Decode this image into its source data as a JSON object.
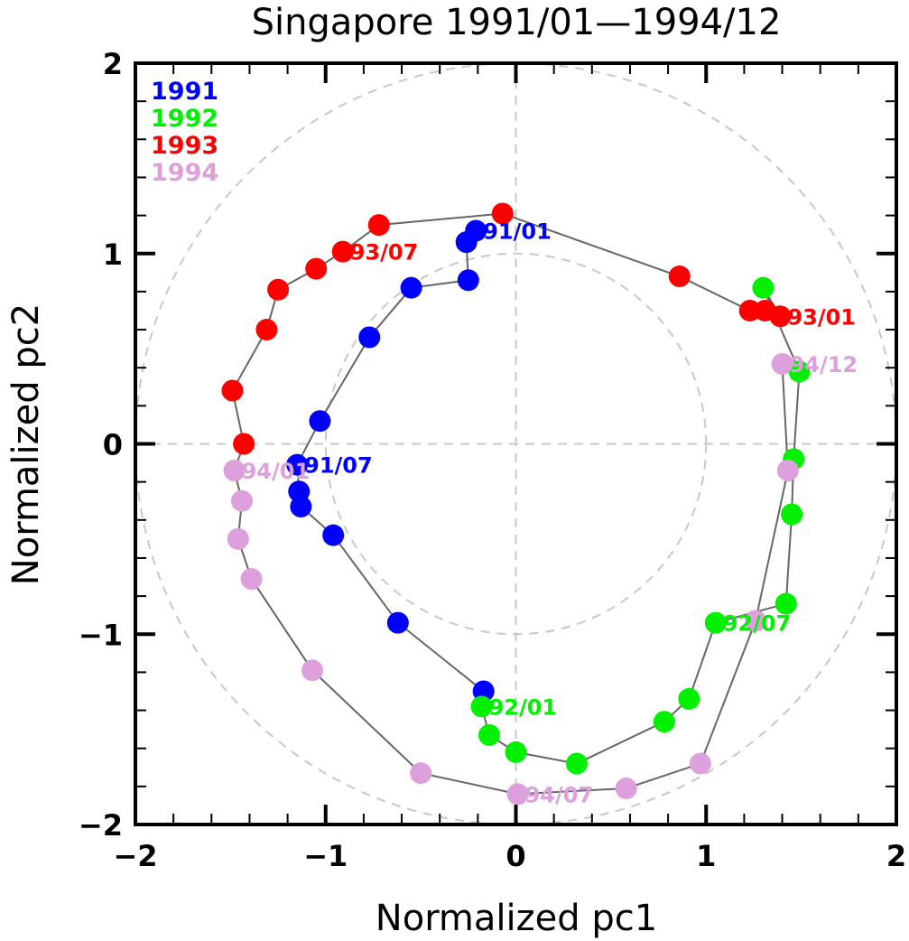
{
  "chart_data": {
    "type": "scatter",
    "title": "Singapore 1991/01—1994/12",
    "xlabel": "Normalized pc1",
    "ylabel": "Normalized pc2",
    "xlim": [
      -2,
      2
    ],
    "ylim": [
      -2,
      2
    ],
    "xticks": [
      -2,
      -1,
      0,
      1,
      2
    ],
    "yticks": [
      -2,
      -1,
      0,
      1,
      2
    ],
    "xtick_labels": [
      "−2",
      "−1",
      "0",
      "1",
      "2"
    ],
    "ytick_labels": [
      "−2",
      "−1",
      "0",
      "1",
      "2"
    ],
    "minor_tick_step": 0.2,
    "grid": "dashed zero lines and reference circles",
    "reference_circles": [
      1,
      2
    ],
    "legend_position": "top-left",
    "line_color": "#666666",
    "grid_color": "#c8c8c8",
    "series": [
      {
        "name": "1991",
        "color": "#0000ff",
        "points": [
          {
            "month": "01",
            "x": -0.21,
            "y": 1.12
          },
          {
            "month": "02",
            "x": -0.26,
            "y": 1.06
          },
          {
            "month": "03",
            "x": -0.25,
            "y": 0.86
          },
          {
            "month": "04",
            "x": -0.55,
            "y": 0.82
          },
          {
            "month": "05",
            "x": -0.77,
            "y": 0.56
          },
          {
            "month": "06",
            "x": -1.03,
            "y": 0.12
          },
          {
            "month": "07",
            "x": -1.15,
            "y": -0.11
          },
          {
            "month": "08",
            "x": -1.14,
            "y": -0.25
          },
          {
            "month": "09",
            "x": -1.13,
            "y": -0.33
          },
          {
            "month": "10",
            "x": -0.96,
            "y": -0.48
          },
          {
            "month": "11",
            "x": -0.62,
            "y": -0.94
          },
          {
            "month": "12",
            "x": -0.17,
            "y": -1.3
          }
        ],
        "labels": [
          {
            "text": "91/01",
            "month_index": 0
          },
          {
            "text": "91/07",
            "month_index": 6
          }
        ]
      },
      {
        "name": "1992",
        "color": "#00f000",
        "points": [
          {
            "month": "01",
            "x": -0.18,
            "y": -1.38
          },
          {
            "month": "02",
            "x": -0.14,
            "y": -1.53
          },
          {
            "month": "03",
            "x": 0.0,
            "y": -1.62
          },
          {
            "month": "04",
            "x": 0.32,
            "y": -1.68
          },
          {
            "month": "05",
            "x": 0.78,
            "y": -1.46
          },
          {
            "month": "06",
            "x": 0.91,
            "y": -1.34
          },
          {
            "month": "07",
            "x": 1.05,
            "y": -0.94
          },
          {
            "month": "08",
            "x": 1.42,
            "y": -0.84
          },
          {
            "month": "09",
            "x": 1.45,
            "y": -0.37
          },
          {
            "month": "10",
            "x": 1.46,
            "y": -0.08
          },
          {
            "month": "11",
            "x": 1.49,
            "y": 0.38
          },
          {
            "month": "12",
            "x": 1.3,
            "y": 0.82
          }
        ],
        "labels": [
          {
            "text": "92/01",
            "month_index": 0
          },
          {
            "text": "92/07",
            "month_index": 6
          }
        ]
      },
      {
        "name": "1993",
        "color": "#ff0000",
        "points": [
          {
            "month": "01",
            "x": 1.39,
            "y": 0.67
          },
          {
            "month": "02",
            "x": 1.31,
            "y": 0.7
          },
          {
            "month": "03",
            "x": 1.23,
            "y": 0.7
          },
          {
            "month": "04",
            "x": 0.86,
            "y": 0.88
          },
          {
            "month": "05",
            "x": -0.07,
            "y": 1.21
          },
          {
            "month": "06",
            "x": -0.72,
            "y": 1.15
          },
          {
            "month": "07",
            "x": -0.91,
            "y": 1.01
          },
          {
            "month": "08",
            "x": -1.05,
            "y": 0.92
          },
          {
            "month": "09",
            "x": -1.25,
            "y": 0.81
          },
          {
            "month": "10",
            "x": -1.31,
            "y": 0.6
          },
          {
            "month": "11",
            "x": -1.49,
            "y": 0.28
          },
          {
            "month": "12",
            "x": -1.43,
            "y": 0.0
          }
        ],
        "labels": [
          {
            "text": "93/01",
            "month_index": 0
          },
          {
            "text": "93/07",
            "month_index": 6
          }
        ]
      },
      {
        "name": "1994",
        "color": "#dda0dd",
        "points": [
          {
            "month": "01",
            "x": -1.48,
            "y": -0.14
          },
          {
            "month": "02",
            "x": -1.44,
            "y": -0.3
          },
          {
            "month": "03",
            "x": -1.46,
            "y": -0.5
          },
          {
            "month": "04",
            "x": -1.39,
            "y": -0.71
          },
          {
            "month": "05",
            "x": -1.07,
            "y": -1.19
          },
          {
            "month": "06",
            "x": -0.5,
            "y": -1.73
          },
          {
            "month": "07",
            "x": 0.01,
            "y": -1.84
          },
          {
            "month": "08",
            "x": 0.58,
            "y": -1.81
          },
          {
            "month": "09",
            "x": 0.97,
            "y": -1.68
          },
          {
            "month": "10",
            "x": 1.26,
            "y": -0.93
          },
          {
            "month": "11",
            "x": 1.43,
            "y": -0.14
          },
          {
            "month": "12",
            "x": 1.4,
            "y": 0.42
          }
        ],
        "labels": [
          {
            "text": "94/01",
            "month_index": 0
          },
          {
            "text": "94/07",
            "month_index": 6
          },
          {
            "text": "94/12",
            "month_index": 11
          }
        ]
      }
    ]
  }
}
